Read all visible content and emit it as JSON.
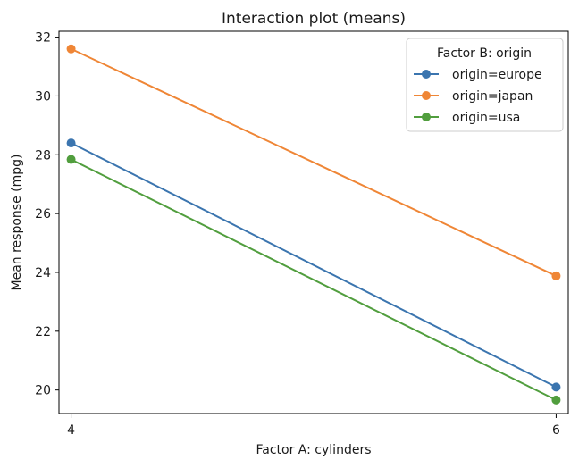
{
  "chart_data": {
    "type": "line",
    "title": "Interaction plot (means)",
    "xlabel": "Factor A: cylinders",
    "ylabel": "Mean response (mpg)",
    "x": [
      4,
      6
    ],
    "x_tick_labels": [
      "4",
      "6"
    ],
    "y_ticks": [
      20,
      22,
      24,
      26,
      28,
      30,
      32
    ],
    "y_tick_labels": [
      "20",
      "22",
      "24",
      "26",
      "28",
      "30",
      "32"
    ],
    "xlim": [
      3.95,
      6.05
    ],
    "ylim": [
      19.2,
      32.2
    ],
    "grid": false,
    "legend": {
      "title": "Factor B: origin",
      "placement": "top-right"
    },
    "series": [
      {
        "name": "origin=europe",
        "color": "#3b75af",
        "values": [
          28.4,
          20.1
        ]
      },
      {
        "name": "origin=japan",
        "color": "#ef8636",
        "values": [
          31.6,
          23.88
        ]
      },
      {
        "name": "origin=usa",
        "color": "#519e3e",
        "values": [
          27.84,
          19.66
        ]
      }
    ]
  }
}
